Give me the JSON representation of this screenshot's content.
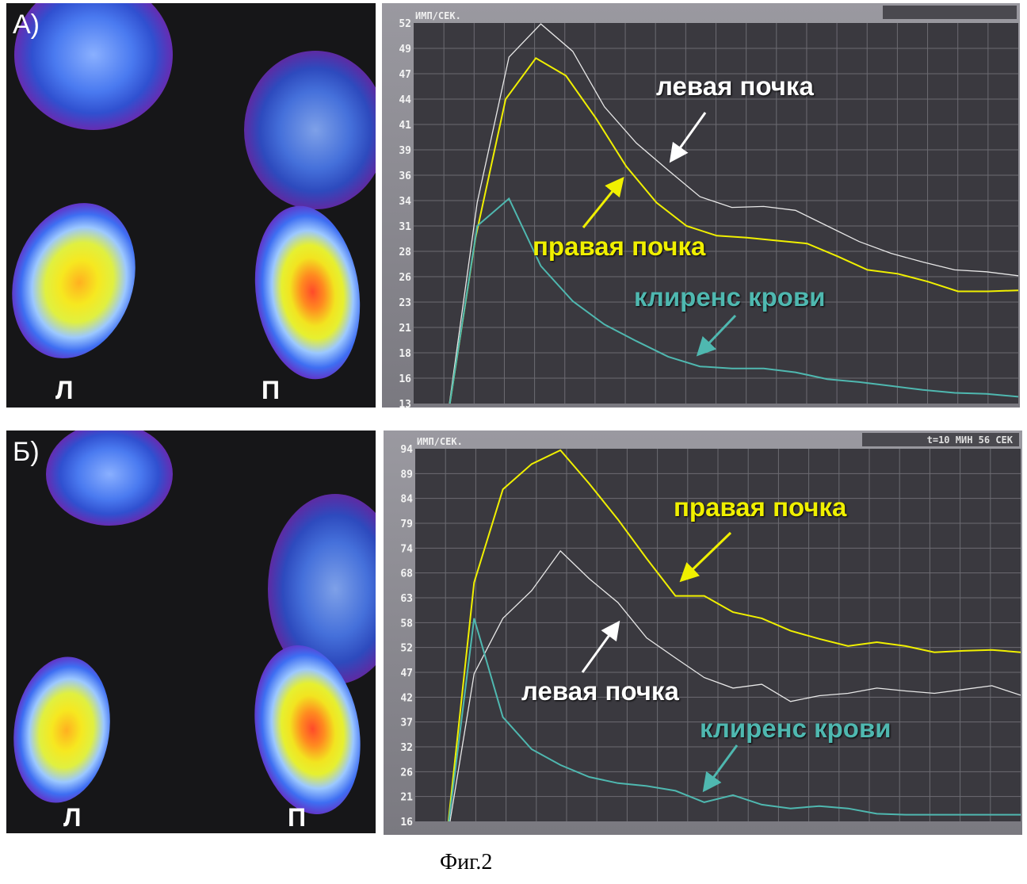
{
  "panels": [
    {
      "label": "А)",
      "left_label": "Л",
      "right_label": "П"
    },
    {
      "label": "Б)",
      "left_label": "Л",
      "right_label": "П"
    }
  ],
  "colors": {
    "right_kidney": "#f0f000",
    "left_kidney": "#e8e8e8",
    "blood_clearance": "#4fb8b0",
    "plot_bg": "#3a393f",
    "grid": "#6c6b72",
    "frame": "#8b8a92"
  },
  "chart_data": [
    {
      "type": "line",
      "title": "",
      "ylabel": "ИМП/СЕК.",
      "xlabel": "",
      "status_text": "",
      "yticks": [
        "52",
        "49",
        "47",
        "44",
        "41",
        "39",
        "36",
        "34",
        "31",
        "28",
        "26",
        "23",
        "21",
        "18",
        "16",
        "13"
      ],
      "ylim": [
        13,
        52
      ],
      "grid": true,
      "series": [
        {
          "name": "левая почка",
          "color": "#e8e8e8",
          "values": [
            10,
            33.6,
            48.5,
            51.9,
            49.1,
            43.4,
            39.7,
            36.9,
            34.2,
            33.1,
            33.2,
            32.8,
            31.2,
            29.6,
            28.4,
            27.5,
            26.7,
            26.5,
            26.1
          ]
        },
        {
          "name": "правая почка",
          "color": "#f0f000",
          "values": [
            10,
            30.0,
            44.2,
            48.4,
            46.6,
            42.2,
            37.3,
            33.6,
            31.2,
            30.2,
            30.0,
            29.7,
            29.4,
            28.1,
            26.7,
            26.3,
            25.5,
            24.5,
            24.5,
            24.6
          ]
        },
        {
          "name": "клиренс крови",
          "color": "#4fb8b0",
          "values": [
            10,
            31.2,
            34.0,
            27.1,
            23.5,
            21.1,
            19.4,
            17.8,
            16.8,
            16.6,
            16.6,
            16.2,
            15.5,
            15.2,
            14.8,
            14.4,
            14.1,
            14.0,
            13.7
          ]
        }
      ]
    },
    {
      "type": "line",
      "title": "",
      "ylabel": "ИМП/СЕК.",
      "xlabel": "",
      "status_text": "t=10 МИН 56 СЕК",
      "yticks": [
        "94",
        "89",
        "84",
        "79",
        "74",
        "68",
        "63",
        "58",
        "52",
        "47",
        "42",
        "37",
        "32",
        "26",
        "21",
        "16"
      ],
      "ylim": [
        16,
        94
      ],
      "grid": true,
      "series": [
        {
          "name": "правая почка",
          "color": "#f0f000",
          "values": [
            10,
            66.0,
            85.5,
            90.8,
            93.7,
            86.7,
            79.2,
            71.0,
            63.2,
            63.2,
            59.8,
            58.5,
            55.9,
            54.2,
            52.7,
            53.5,
            52.7,
            51.4,
            51.7,
            51.9,
            51.4
          ]
        },
        {
          "name": "левая почка",
          "color": "#e8e8e8",
          "values": [
            10,
            46.9,
            58.5,
            64.3,
            72.6,
            66.8,
            61.8,
            54.4,
            50.2,
            46.1,
            43.9,
            44.7,
            41.1,
            42.3,
            42.8,
            43.9,
            43.3,
            42.8,
            43.6,
            44.4,
            42.4
          ]
        },
        {
          "name": "клиренс крови",
          "color": "#4fb8b0",
          "values": [
            10,
            58.5,
            37.8,
            31.1,
            27.8,
            25.3,
            24.0,
            23.4,
            22.4,
            20.0,
            21.5,
            19.5,
            18.7,
            19.2,
            18.7,
            17.6,
            17.4,
            17.4,
            17.4,
            17.4,
            17.4
          ]
        }
      ]
    }
  ],
  "annotations": [
    [
      {
        "text": "левая почка",
        "series": "left"
      },
      {
        "text": "правая почка",
        "series": "right"
      },
      {
        "text": "клиренс крови",
        "series": "blood"
      }
    ],
    [
      {
        "text": "правая почка",
        "series": "right"
      },
      {
        "text": "левая почка",
        "series": "left"
      },
      {
        "text": "клиренс крови",
        "series": "blood"
      }
    ]
  ],
  "caption": "Фиг.2"
}
